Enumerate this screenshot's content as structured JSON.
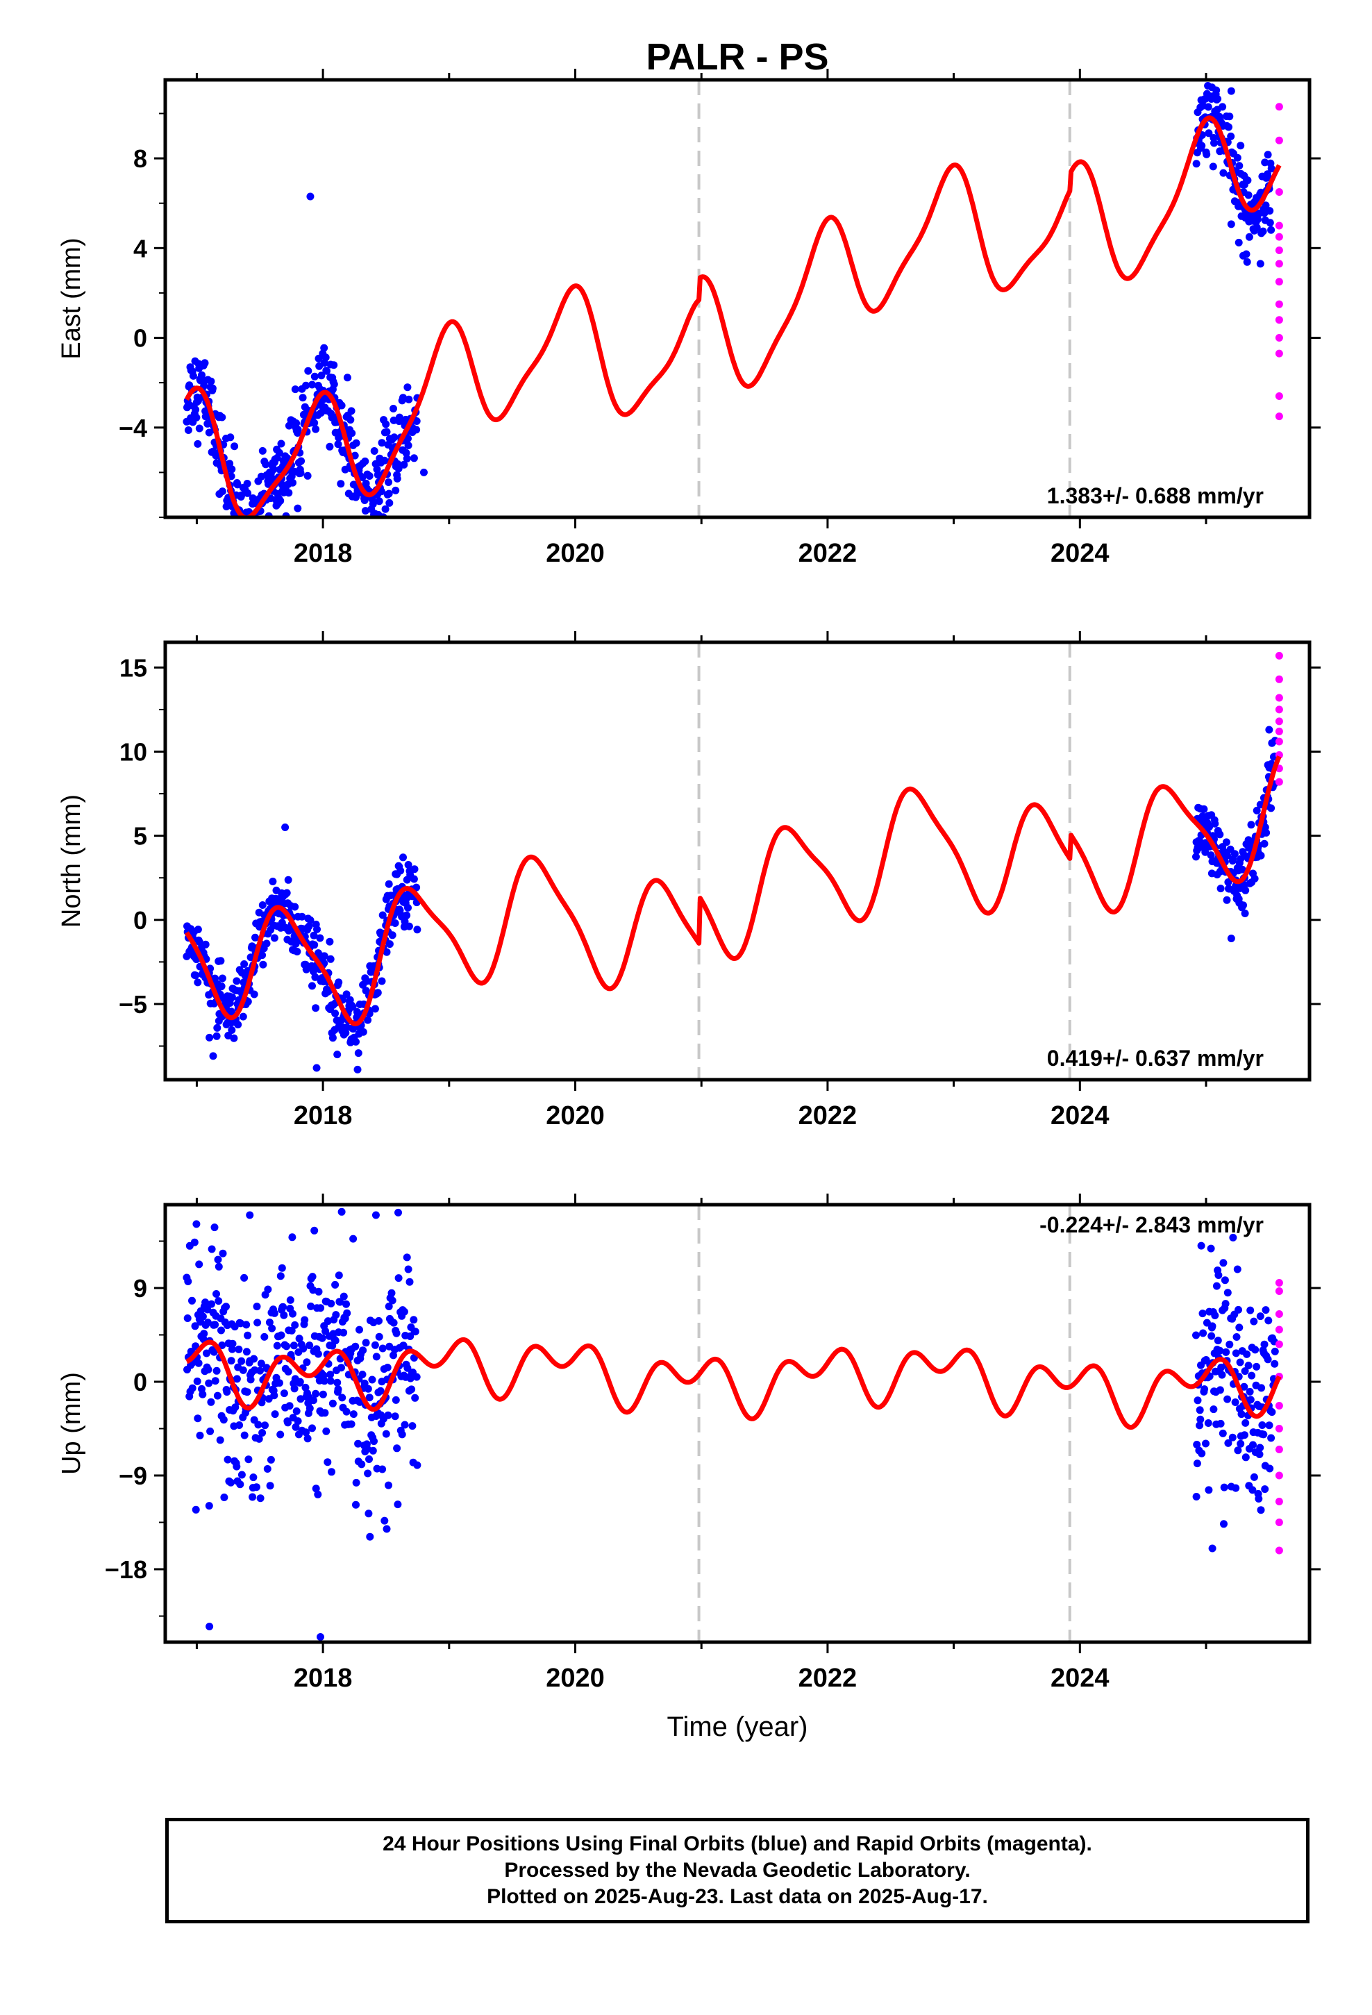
{
  "title": "PALR - PS",
  "xlabel": "Time (year)",
  "footer": {
    "line1": "24 Hour Positions Using Final Orbits (blue) and Rapid Orbits (magenta).",
    "line2": "Processed by the Nevada Geodetic Laboratory.",
    "line3": "Plotted on 2025-Aug-23. Last data on 2025-Aug-17."
  },
  "colors": {
    "final_orbits": "#0000ff",
    "rapid_orbits": "#ff00ff",
    "model": "#ff0000",
    "steps": "#c8c8c8"
  },
  "chart_data": [
    {
      "type": "scatter",
      "panel": "east",
      "ylabel": "East (mm)",
      "xlim": [
        2016.75,
        2025.82
      ],
      "ylim": [
        -8,
        11.5
      ],
      "yticks": [
        -4,
        0,
        4,
        8
      ],
      "xticks": [
        2018,
        2020,
        2022,
        2024
      ],
      "rate_label": "1.383+/- 0.688 mm/yr",
      "rate_position": "bottom-right",
      "step_epochs": [
        2020.98,
        2023.92
      ],
      "model": {
        "offset": [
          0.0,
          0.95,
          1.7
        ],
        "slope": 1.383,
        "annual": [
          -0.6,
          2.4
        ],
        "semiannual": [
          0.4,
          0.5
        ],
        "long": [
          0.8,
          0.9
        ]
      },
      "final_orbits": {
        "ranges": [
          [
            2016.92,
            2018.75
          ],
          [
            2024.92,
            2025.52
          ]
        ],
        "scatter": 0.95,
        "outliers": [
          [
            2017.9,
            6.3
          ],
          [
            2017.8,
            -7.6
          ],
          [
            2017.4,
            -6.5
          ],
          [
            2025.2,
            11.0
          ],
          [
            2018.8,
            -6.0
          ]
        ]
      },
      "rapid_orbits": [
        [
          2025.58,
          10.3
        ],
        [
          2025.58,
          8.8
        ],
        [
          2025.58,
          6.5
        ],
        [
          2025.58,
          5.0
        ],
        [
          2025.58,
          4.5
        ],
        [
          2025.58,
          3.9
        ],
        [
          2025.58,
          3.3
        ],
        [
          2025.58,
          2.5
        ],
        [
          2025.58,
          1.5
        ],
        [
          2025.58,
          0.8
        ],
        [
          2025.58,
          0.0
        ],
        [
          2025.58,
          -0.7
        ],
        [
          2025.58,
          -2.6
        ],
        [
          2025.58,
          -3.5
        ]
      ]
    },
    {
      "type": "scatter",
      "panel": "north",
      "ylabel": "North (mm)",
      "xlim": [
        2016.75,
        2025.82
      ],
      "ylim": [
        -9.5,
        16.5
      ],
      "yticks": [
        -5,
        0,
        5,
        10,
        15
      ],
      "xticks": [
        2018,
        2020,
        2022,
        2024
      ],
      "rate_label": "0.419+/- 0.637 mm/yr",
      "rate_position": "bottom-right",
      "step_epochs": [
        2020.98,
        2023.92
      ],
      "model": {
        "offset": [
          -0.3,
          2.5,
          4.0
        ],
        "slope": 0.419,
        "annual": [
          -3.2,
          -0.7
        ],
        "semiannual": [
          0.6,
          0.5
        ],
        "long": [
          0.8,
          0.9
        ]
      },
      "final_orbits": {
        "ranges": [
          [
            2016.92,
            2018.75
          ],
          [
            2024.92,
            2025.55
          ]
        ],
        "scatter": 1.0,
        "outliers": [
          [
            2017.7,
            5.5
          ],
          [
            2017.1,
            -7.0
          ],
          [
            2017.95,
            -8.8
          ],
          [
            2025.2,
            -1.1
          ],
          [
            2025.5,
            11.3
          ]
        ]
      },
      "rapid_orbits": [
        [
          2025.58,
          15.7
        ],
        [
          2025.58,
          14.3
        ],
        [
          2025.58,
          13.2
        ],
        [
          2025.58,
          12.5
        ],
        [
          2025.58,
          11.8
        ],
        [
          2025.58,
          11.2
        ],
        [
          2025.58,
          10.6
        ],
        [
          2025.58,
          9.8
        ],
        [
          2025.58,
          9.0
        ],
        [
          2025.58,
          8.2
        ]
      ]
    },
    {
      "type": "scatter",
      "panel": "up",
      "ylabel": "Up (mm)",
      "xlim": [
        2016.75,
        2025.82
      ],
      "ylim": [
        -25,
        17
      ],
      "yticks": [
        -18,
        -9,
        0,
        9
      ],
      "xticks": [
        2018,
        2020,
        2022,
        2024
      ],
      "rate_label": "-0.224+/- 2.843 mm/yr",
      "rate_position": "top-right",
      "step_epochs": [
        2020.98,
        2023.92
      ],
      "model": {
        "offset": [
          0.7,
          0.7,
          0.7
        ],
        "slope": -0.224,
        "annual": [
          -0.8,
          1.6
        ],
        "semiannual": [
          1.7,
          -0.5
        ],
        "long": [
          0.4,
          0.7
        ]
      },
      "final_orbits": {
        "ranges": [
          [
            2016.92,
            2018.75
          ],
          [
            2024.92,
            2025.55
          ]
        ],
        "scatter": 5.0,
        "outliers": [
          [
            2017.42,
            16.0
          ],
          [
            2017.1,
            -23.5
          ],
          [
            2017.98,
            -24.5
          ],
          [
            2018.42,
            16.0
          ],
          [
            2025.05,
            -16.0
          ]
        ]
      },
      "rapid_orbits": [
        [
          2025.58,
          9.5
        ],
        [
          2025.58,
          8.7
        ],
        [
          2025.58,
          6.5
        ],
        [
          2025.58,
          5.0
        ],
        [
          2025.58,
          3.6
        ],
        [
          2025.58,
          0.5
        ],
        [
          2025.58,
          -2.3
        ],
        [
          2025.58,
          -4.5
        ],
        [
          2025.58,
          -6.5
        ],
        [
          2025.58,
          -9.0
        ],
        [
          2025.58,
          -11.5
        ],
        [
          2025.58,
          -13.5
        ],
        [
          2025.58,
          -16.2
        ]
      ]
    }
  ]
}
